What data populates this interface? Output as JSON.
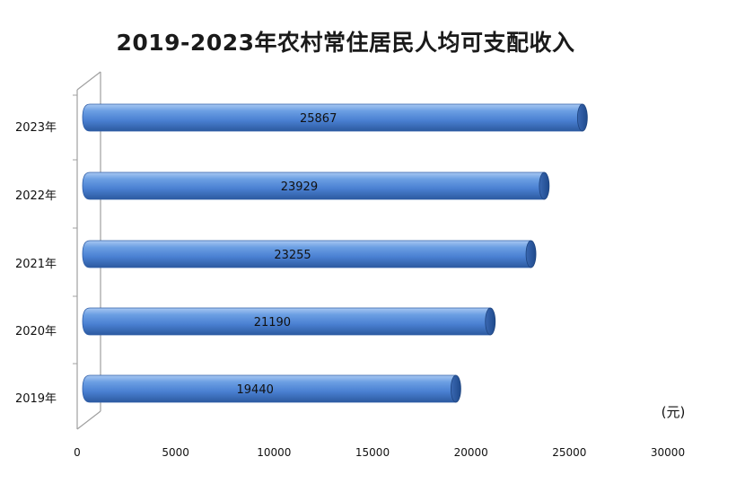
{
  "chart_data": {
    "type": "bar",
    "orientation": "horizontal",
    "title": "2019-2023年农村常住居民人均可支配收入",
    "categories": [
      "2019年",
      "2020年",
      "2021年",
      "2022年",
      "2023年"
    ],
    "values": [
      19440,
      21190,
      23255,
      23929,
      25867
    ],
    "data_labels": [
      "19440",
      "21190",
      "23255",
      "23929",
      "25867"
    ],
    "xlim": [
      0,
      30000
    ],
    "x_ticks": [
      0,
      5000,
      10000,
      15000,
      20000,
      25000,
      30000
    ],
    "x_tick_labels": [
      "0",
      "5000",
      "10000",
      "15000",
      "20000",
      "25000",
      "30000"
    ],
    "unit_label": "(元)",
    "bar_color": "#4a86d8",
    "bar_edge_color": "#2f5ea8",
    "gridlines": false,
    "legend": "none",
    "style": "3d-cylinder"
  }
}
